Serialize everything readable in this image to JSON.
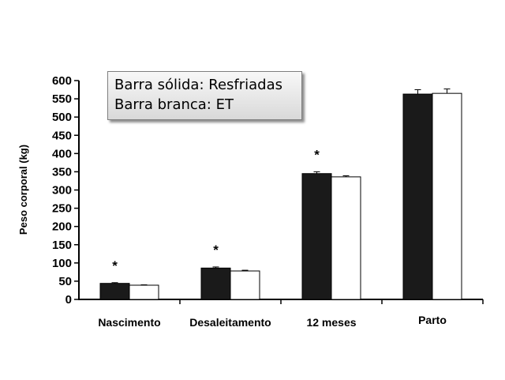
{
  "chart_data": {
    "type": "bar",
    "ylabel": "Peso corporal (kg)",
    "xlabel": "",
    "ylim": [
      0,
      600
    ],
    "yticks": [
      "0",
      "50",
      "100",
      "150",
      "200",
      "250",
      "300",
      "350",
      "400",
      "450",
      "500",
      "550",
      "600"
    ],
    "categories": [
      "Nascimento",
      "Desaleitamento",
      "12 meses",
      "Parto"
    ],
    "series": [
      {
        "name": "Resfriadas",
        "color": "#1a1a1a",
        "values": [
          44,
          86,
          345,
          563
        ],
        "errors": [
          2,
          3,
          5,
          12
        ]
      },
      {
        "name": "ET",
        "color": "#ffffff",
        "values": [
          39,
          78,
          336,
          565
        ],
        "errors": [
          1,
          2,
          3,
          12
        ]
      }
    ],
    "significance": [
      "*",
      "*",
      "*",
      ""
    ],
    "legend": {
      "lines": [
        "Barra sólida: Resfriadas",
        "Barra branca: ET"
      ],
      "position": "top-left"
    },
    "grid": false
  }
}
